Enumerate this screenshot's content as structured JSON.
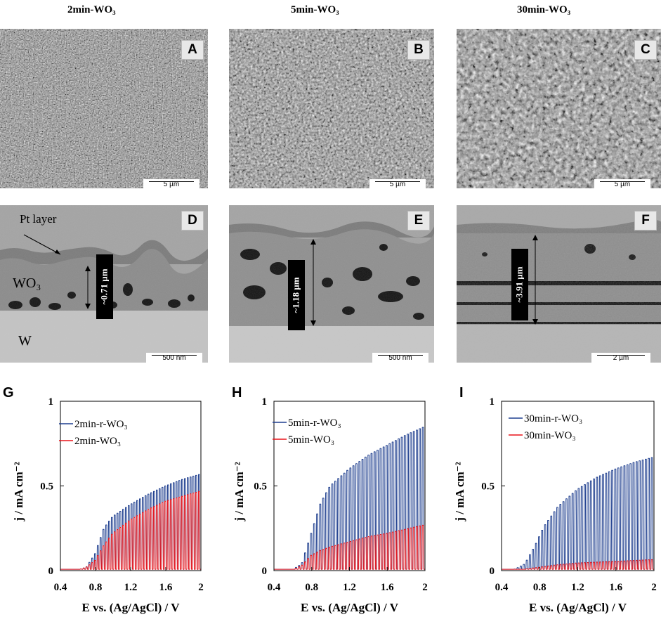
{
  "columns": [
    "2min-WO₃",
    "5min-WO₃",
    "30min-WO₃"
  ],
  "panels": {
    "top": [
      {
        "letter": "A",
        "scale": "5 µm"
      },
      {
        "letter": "B",
        "scale": "5 µm"
      },
      {
        "letter": "C",
        "scale": "5 µm"
      }
    ],
    "cross": [
      {
        "letter": "D",
        "scale": "500 nm",
        "thickness": "~0.71 µm"
      },
      {
        "letter": "E",
        "scale": "500 nm",
        "thickness": "~1.18 µm"
      },
      {
        "letter": "F",
        "scale": "2 µm",
        "thickness": "~3.91 µm"
      }
    ],
    "labels_d": {
      "pt": "Pt layer",
      "wo3": "WO₃",
      "w": "W"
    }
  },
  "chart_data": [
    {
      "type": "line",
      "panel": "G",
      "xlabel": "E vs. (Ag/AgCl) / V",
      "ylabel": "j / mA cm⁻²",
      "xlim": [
        0.4,
        2
      ],
      "ylim": [
        0,
        1
      ],
      "xticks": [
        "0.4",
        "0.8",
        "1.2",
        "1.6",
        "2"
      ],
      "yticks": [
        "0",
        "0.5",
        "1"
      ],
      "series": [
        {
          "name": "2min-r-WO₃",
          "color": "#1f3f8f",
          "envelope": [
            [
              0.4,
              0
            ],
            [
              0.6,
              0.003
            ],
            [
              0.7,
              0.02
            ],
            [
              0.8,
              0.1
            ],
            [
              0.9,
              0.25
            ],
            [
              1.0,
              0.32
            ],
            [
              1.2,
              0.39
            ],
            [
              1.4,
              0.45
            ],
            [
              1.6,
              0.5
            ],
            [
              1.8,
              0.54
            ],
            [
              2.0,
              0.57
            ]
          ]
        },
        {
          "name": "2min-WO₃",
          "color": "#e8141a",
          "envelope": [
            [
              0.4,
              0
            ],
            [
              0.6,
              0.003
            ],
            [
              0.7,
              0.02
            ],
            [
              0.8,
              0.06
            ],
            [
              0.9,
              0.15
            ],
            [
              1.0,
              0.22
            ],
            [
              1.2,
              0.3
            ],
            [
              1.4,
              0.36
            ],
            [
              1.6,
              0.41
            ],
            [
              1.8,
              0.44
            ],
            [
              2.0,
              0.47
            ]
          ]
        }
      ]
    },
    {
      "type": "line",
      "panel": "H",
      "xlabel": "E vs. (Ag/AgCl) / V",
      "ylabel": "j / mA cm⁻²",
      "xlim": [
        0.4,
        2
      ],
      "ylim": [
        0,
        1
      ],
      "xticks": [
        "0.4",
        "0.8",
        "1.2",
        "1.6",
        "2"
      ],
      "yticks": [
        "0",
        "0.5",
        "1"
      ],
      "series": [
        {
          "name": "5min-r-WO₃",
          "color": "#1f3f8f",
          "envelope": [
            [
              0.4,
              0
            ],
            [
              0.6,
              0.005
            ],
            [
              0.7,
              0.04
            ],
            [
              0.8,
              0.22
            ],
            [
              0.9,
              0.4
            ],
            [
              1.0,
              0.5
            ],
            [
              1.2,
              0.6
            ],
            [
              1.4,
              0.68
            ],
            [
              1.6,
              0.74
            ],
            [
              1.8,
              0.8
            ],
            [
              2.0,
              0.85
            ]
          ]
        },
        {
          "name": "5min-WO₃",
          "color": "#e8141a",
          "envelope": [
            [
              0.4,
              0
            ],
            [
              0.6,
              0.004
            ],
            [
              0.7,
              0.03
            ],
            [
              0.8,
              0.09
            ],
            [
              0.9,
              0.12
            ],
            [
              1.0,
              0.14
            ],
            [
              1.2,
              0.17
            ],
            [
              1.4,
              0.2
            ],
            [
              1.6,
              0.22
            ],
            [
              1.8,
              0.245
            ],
            [
              2.0,
              0.27
            ]
          ]
        }
      ]
    },
    {
      "type": "line",
      "panel": "I",
      "xlabel": "E vs. (Ag/AgCl) / V",
      "ylabel": "j / mA cm⁻²",
      "xlim": [
        0.4,
        2
      ],
      "ylim": [
        0,
        1
      ],
      "xticks": [
        "0.4",
        "0.8",
        "1.2",
        "1.6",
        "2"
      ],
      "yticks": [
        "0",
        "0.5",
        "1"
      ],
      "series": [
        {
          "name": "30min-r-WO₃",
          "color": "#1f3f8f",
          "envelope": [
            [
              0.4,
              0
            ],
            [
              0.55,
              0.01
            ],
            [
              0.65,
              0.04
            ],
            [
              0.75,
              0.14
            ],
            [
              0.85,
              0.26
            ],
            [
              1.0,
              0.38
            ],
            [
              1.2,
              0.48
            ],
            [
              1.4,
              0.55
            ],
            [
              1.6,
              0.6
            ],
            [
              1.8,
              0.64
            ],
            [
              2.0,
              0.67
            ]
          ]
        },
        {
          "name": "30min-WO₃",
          "color": "#e8141a",
          "envelope": [
            [
              0.4,
              0
            ],
            [
              0.6,
              0.005
            ],
            [
              0.8,
              0.02
            ],
            [
              1.0,
              0.035
            ],
            [
              1.2,
              0.045
            ],
            [
              1.4,
              0.05
            ],
            [
              1.6,
              0.055
            ],
            [
              1.8,
              0.06
            ],
            [
              2.0,
              0.065
            ]
          ]
        }
      ]
    }
  ]
}
